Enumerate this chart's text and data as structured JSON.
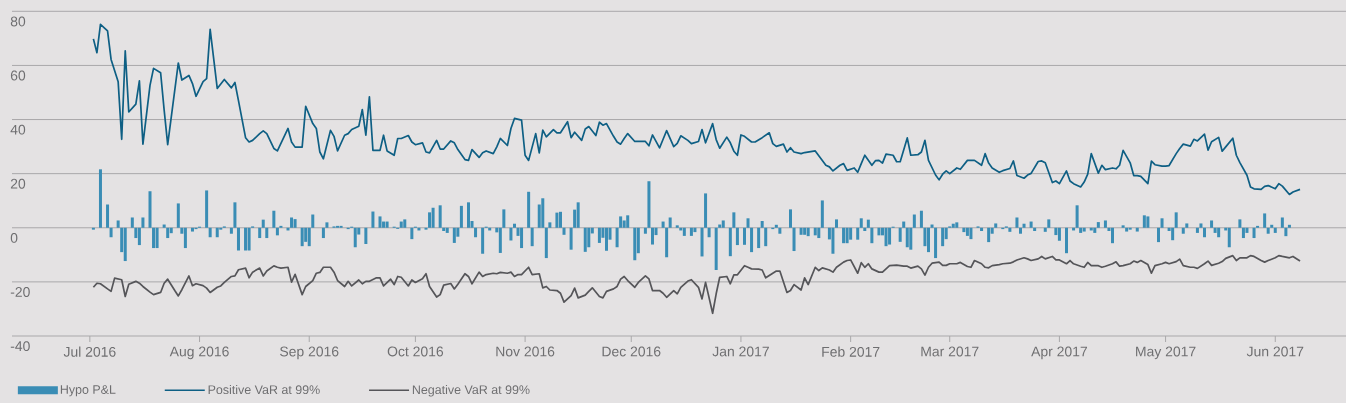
{
  "chart_data": {
    "type": "bar",
    "xlim": [
      "2016-06-09",
      "2017-06-21"
    ],
    "xticks": [
      {
        "value": "2016-07-01",
        "label": "Jul 2016"
      },
      {
        "value": "2016-08-01",
        "label": "Aug 2016"
      },
      {
        "value": "2016-09-01",
        "label": "Sep 2016"
      },
      {
        "value": "2016-10-01",
        "label": "Oct 2016"
      },
      {
        "value": "2016-11-01",
        "label": "Nov 2016"
      },
      {
        "value": "2016-12-01",
        "label": "Dec 2016"
      },
      {
        "value": "2017-01-01",
        "label": "Jan 2017"
      },
      {
        "value": "2017-02-01",
        "label": "Feb 2017"
      },
      {
        "value": "2017-03-01",
        "label": "Mar 2017"
      },
      {
        "value": "2017-04-01",
        "label": "Apr 2017"
      },
      {
        "value": "2017-05-01",
        "label": "May 2017"
      },
      {
        "value": "2017-06-01",
        "label": "Jun 2017"
      }
    ],
    "ylim": [
      -40,
      80
    ],
    "yticks": [
      -40,
      -20,
      0,
      20,
      40,
      60,
      80
    ],
    "grid": "y",
    "legend": "bottom",
    "series": [
      {
        "name": "Hypo P&L",
        "color": "#3a8db5",
        "x": [
          "2016-07-02",
          "2016-07-04",
          "2016-07-06",
          "2016-07-07",
          "2016-07-09",
          "2016-07-10",
          "2016-07-11",
          "2016-07-13",
          "2016-07-14",
          "2016-07-15",
          "2016-07-16",
          "2016-07-18",
          "2016-07-19",
          "2016-07-20",
          "2016-07-22",
          "2016-07-23",
          "2016-07-24",
          "2016-07-26",
          "2016-07-27",
          "2016-07-28",
          "2016-07-30",
          "2016-07-31",
          "2016-08-01",
          "2016-08-03",
          "2016-08-04",
          "2016-08-06",
          "2016-08-07",
          "2016-08-08",
          "2016-08-10",
          "2016-08-11",
          "2016-08-12",
          "2016-08-14",
          "2016-08-15",
          "2016-08-16",
          "2016-08-18",
          "2016-08-19",
          "2016-08-20",
          "2016-08-22",
          "2016-08-23",
          "2016-08-24",
          "2016-08-26",
          "2016-08-27",
          "2016-08-28",
          "2016-08-30",
          "2016-08-31",
          "2016-09-01",
          "2016-09-02",
          "2016-09-05",
          "2016-09-06",
          "2016-09-08",
          "2016-09-09",
          "2016-09-10",
          "2016-09-12",
          "2016-09-13",
          "2016-09-14",
          "2016-09-15",
          "2016-09-17",
          "2016-09-19",
          "2016-09-21",
          "2016-09-22",
          "2016-09-23",
          "2016-09-25",
          "2016-09-26",
          "2016-09-27",
          "2016-09-28",
          "2016-09-30",
          "2016-10-01",
          "2016-10-02",
          "2016-10-04",
          "2016-10-05",
          "2016-10-06",
          "2016-10-08",
          "2016-10-09",
          "2016-10-10",
          "2016-10-12",
          "2016-10-13",
          "2016-10-14",
          "2016-10-16",
          "2016-10-17",
          "2016-10-18",
          "2016-10-20",
          "2016-10-21",
          "2016-10-22",
          "2016-10-24",
          "2016-10-25",
          "2016-10-26",
          "2016-10-28",
          "2016-10-29",
          "2016-10-30",
          "2016-10-31",
          "2016-11-02",
          "2016-11-03",
          "2016-11-05",
          "2016-11-06",
          "2016-11-07",
          "2016-11-08",
          "2016-11-10",
          "2016-11-11",
          "2016-11-12",
          "2016-11-14",
          "2016-11-15",
          "2016-11-16",
          "2016-11-18",
          "2016-11-19",
          "2016-11-20",
          "2016-11-22",
          "2016-11-23",
          "2016-11-24",
          "2016-11-25",
          "2016-11-27",
          "2016-11-28",
          "2016-11-29",
          "2016-11-30",
          "2016-12-02",
          "2016-12-03",
          "2016-12-05",
          "2016-12-06",
          "2016-12-07",
          "2016-12-08",
          "2016-12-10",
          "2016-12-11",
          "2016-12-12",
          "2016-12-14",
          "2016-12-15",
          "2016-12-16",
          "2016-12-18",
          "2016-12-19",
          "2016-12-21",
          "2016-12-22",
          "2016-12-23",
          "2016-12-25",
          "2016-12-26",
          "2016-12-27",
          "2016-12-29",
          "2016-12-30",
          "2016-12-31",
          "2017-01-02",
          "2017-01-03",
          "2017-01-04",
          "2017-01-06",
          "2017-01-07",
          "2017-01-08",
          "2017-01-10",
          "2017-01-11",
          "2017-01-12",
          "2017-01-15",
          "2017-01-16",
          "2017-01-18",
          "2017-01-19",
          "2017-01-20",
          "2017-01-22",
          "2017-01-23",
          "2017-01-24",
          "2017-01-26",
          "2017-01-27",
          "2017-01-28",
          "2017-01-30",
          "2017-01-31",
          "2017-02-01",
          "2017-02-03",
          "2017-02-04",
          "2017-02-05",
          "2017-02-06",
          "2017-02-07",
          "2017-02-09",
          "2017-02-10",
          "2017-02-11",
          "2017-02-12",
          "2017-02-13",
          "2017-02-15",
          "2017-02-16",
          "2017-02-17",
          "2017-02-18",
          "2017-02-19",
          "2017-02-21",
          "2017-02-22",
          "2017-02-23",
          "2017-02-24",
          "2017-02-25",
          "2017-02-27",
          "2017-02-28",
          "2017-03-01",
          "2017-03-02",
          "2017-03-03",
          "2017-03-05",
          "2017-03-06",
          "2017-03-07",
          "2017-03-09",
          "2017-03-10",
          "2017-03-12",
          "2017-03-13",
          "2017-03-14",
          "2017-03-16",
          "2017-03-17",
          "2017-03-18",
          "2017-03-20",
          "2017-03-21",
          "2017-03-22",
          "2017-03-24",
          "2017-03-25",
          "2017-03-28",
          "2017-03-29",
          "2017-03-31",
          "2017-04-01",
          "2017-04-03",
          "2017-04-05",
          "2017-04-06",
          "2017-04-07",
          "2017-04-08",
          "2017-04-10",
          "2017-04-11",
          "2017-04-12",
          "2017-04-14",
          "2017-04-15",
          "2017-04-16",
          "2017-04-19",
          "2017-04-20",
          "2017-04-21",
          "2017-04-23",
          "2017-04-24",
          "2017-04-25",
          "2017-04-26",
          "2017-04-29",
          "2017-04-30",
          "2017-05-02",
          "2017-05-03",
          "2017-05-04",
          "2017-05-06",
          "2017-05-07",
          "2017-05-10",
          "2017-05-11",
          "2017-05-12",
          "2017-05-14",
          "2017-05-15",
          "2017-05-16",
          "2017-05-18",
          "2017-05-19",
          "2017-05-22",
          "2017-05-23",
          "2017-05-24",
          "2017-05-26",
          "2017-05-27",
          "2017-05-29",
          "2017-05-30",
          "2017-05-31",
          "2017-06-01",
          "2017-06-03",
          "2017-06-04",
          "2017-06-05"
        ],
        "values": [
          -0.7,
          21.6,
          8.6,
          -3.5,
          2.7,
          -9,
          -12.3,
          3.8,
          -3.8,
          -6.4,
          3.8,
          13.5,
          -7.5,
          -7.5,
          1.2,
          -3.8,
          -2,
          9,
          -2.2,
          -7.5,
          -1.4,
          -0.5,
          0.4,
          13.8,
          -3.5,
          -3.5,
          -0.7,
          0.5,
          -2.2,
          9.4,
          -8.4,
          -8.4,
          -8.4,
          0.5,
          -3.8,
          3,
          -3.8,
          6.3,
          -2.8,
          0.7,
          -1,
          3.8,
          3.2,
          -6.8,
          -5.2,
          -6.8,
          4.9,
          -3.8,
          2,
          0.5,
          0.7,
          0.7,
          -0.5,
          0.4,
          -7.2,
          -2.5,
          -6,
          6,
          4.2,
          2.3,
          2.3,
          0.4,
          -0.4,
          2.3,
          3.1,
          -4.2,
          0.4,
          -1,
          -0.7,
          5.7,
          7.4,
          8.3,
          -1.2,
          -1.9,
          -5.6,
          -3.3,
          8.1,
          9.4,
          2.5,
          -3.5,
          -9.6,
          0.4,
          -1,
          -1.7,
          -9.3,
          6.8,
          -4.7,
          1.5,
          -3,
          -7.5,
          13.3,
          -6.8,
          8.6,
          10.9,
          -11.2,
          2,
          5.6,
          5.9,
          -2.6,
          -8.1,
          6.7,
          9.4,
          -8.9,
          -7.2,
          -2.1,
          -5.6,
          -3.7,
          -8.5,
          -4.4,
          -7.2,
          4.2,
          2.7,
          4.6,
          -12,
          -9.4,
          -2.2,
          17.2,
          -6.2,
          -2.7,
          2.3,
          -10.9,
          3.8,
          0.9,
          -1,
          -3,
          -3,
          -1.6,
          -10.6,
          12.7,
          -3.5,
          -15.6,
          1.2,
          2.7,
          -10.5,
          5.7,
          -6.4,
          -6.3,
          3.5,
          -9,
          -7.5,
          2.5,
          -6.8,
          -0.5,
          1.1,
          -2.2,
          6.8,
          -8.6,
          -2.6,
          -2.6,
          -3.1,
          -2.8,
          -3.8,
          10.1,
          -4.3,
          -9.6,
          3.1,
          -5.7,
          -5.7,
          -4.4,
          -4.4,
          3.5,
          -1.2,
          3,
          -5.7,
          -2.8,
          -2.8,
          -6.8,
          -6.2,
          0.4,
          -5.2,
          2.3,
          -7.2,
          -8.1,
          4.9,
          6.3,
          -6.8,
          -9,
          1.2,
          -11.2,
          -6.8,
          -4.2,
          0.5,
          1.5,
          2,
          -1.6,
          -3,
          -4.2,
          0.5,
          -1.2,
          -5.3,
          -2.2,
          1.6,
          -0.5,
          0.5,
          -1.5,
          3.8,
          -2.2,
          1.5,
          2.3,
          -1.2,
          -1.5,
          3.1,
          -2.7,
          -4.8,
          -9.4,
          -1,
          8.3,
          -1.9,
          -1.4,
          -1,
          -1.9,
          2.1,
          2.7,
          -1.2,
          -5.7,
          0.9,
          -1.4,
          -0.7,
          -1.4,
          null,
          4.6,
          4.2,
          -5.3,
          3.5,
          -1.2,
          -4.6,
          5.7,
          -2.2,
          1.6,
          -1.9,
          1.6,
          -3.5,
          2.7,
          -1.9,
          -3.5,
          -1,
          -7.2,
          3.1,
          -3.8,
          -1.9,
          -3.8,
          0.7,
          5.3,
          -2.2,
          1.1,
          -1.9,
          3.8,
          -3.1,
          1.1
        ]
      },
      {
        "name": "Positive VaR at 99%",
        "type": "line",
        "color": "#0e5f84",
        "x": [
          "2016-07-02",
          "2016-07-03",
          "2016-07-04",
          "2016-07-06",
          "2016-07-07",
          "2016-07-09",
          "2016-07-10",
          "2016-07-11",
          "2016-07-12",
          "2016-07-14",
          "2016-07-15",
          "2016-07-16",
          "2016-07-18",
          "2016-07-19",
          "2016-07-21",
          "2016-07-22",
          "2016-07-23",
          "2016-07-26",
          "2016-07-27",
          "2016-07-29",
          "2016-07-30",
          "2016-07-31",
          "2016-08-02",
          "2016-08-03",
          "2016-08-04",
          "2016-08-06",
          "2016-08-08",
          "2016-08-10",
          "2016-08-11",
          "2016-08-12",
          "2016-08-14",
          "2016-08-15",
          "2016-08-16",
          "2016-08-18",
          "2016-08-19",
          "2016-08-20",
          "2016-08-22",
          "2016-08-23",
          "2016-08-26",
          "2016-08-27",
          "2016-08-28",
          "2016-08-30",
          "2016-08-31",
          "2016-09-02",
          "2016-09-03",
          "2016-09-04",
          "2016-09-05",
          "2016-09-07",
          "2016-09-08",
          "2016-09-09",
          "2016-09-11",
          "2016-09-12",
          "2016-09-13",
          "2016-09-15",
          "2016-09-16",
          "2016-09-17",
          "2016-09-18",
          "2016-09-19",
          "2016-09-21",
          "2016-09-22",
          "2016-09-23",
          "2016-09-25",
          "2016-09-26",
          "2016-09-27",
          "2016-09-29",
          "2016-09-30",
          "2016-10-01",
          "2016-10-03",
          "2016-10-04",
          "2016-10-05",
          "2016-10-07",
          "2016-10-08",
          "2016-10-09",
          "2016-10-11",
          "2016-10-12",
          "2016-10-13",
          "2016-10-15",
          "2016-10-16",
          "2016-10-17",
          "2016-10-19",
          "2016-10-20",
          "2016-10-21",
          "2016-10-23",
          "2016-10-24",
          "2016-10-25",
          "2016-10-27",
          "2016-10-28",
          "2016-10-29",
          "2016-10-31",
          "2016-11-01",
          "2016-11-02",
          "2016-11-04",
          "2016-11-05",
          "2016-11-06",
          "2016-11-07",
          "2016-11-09",
          "2016-11-10",
          "2016-11-11",
          "2016-11-13",
          "2016-11-14",
          "2016-11-15",
          "2016-11-17",
          "2016-11-18",
          "2016-11-19",
          "2016-11-21",
          "2016-11-22",
          "2016-11-23",
          "2016-11-24",
          "2016-11-26",
          "2016-11-27",
          "2016-11-28",
          "2016-11-29",
          "2016-11-30",
          "2016-12-02",
          "2016-12-03",
          "2016-12-05",
          "2016-12-06",
          "2016-12-07",
          "2016-12-09",
          "2016-12-10",
          "2016-12-11",
          "2016-12-13",
          "2016-12-14",
          "2016-12-15",
          "2016-12-17",
          "2016-12-18",
          "2016-12-20",
          "2016-12-21",
          "2016-12-22",
          "2016-12-24",
          "2016-12-25",
          "2016-12-26",
          "2016-12-28",
          "2016-12-29",
          "2016-12-30",
          "2016-12-31",
          "2017-01-01",
          "2017-01-02",
          "2017-01-04",
          "2017-01-05",
          "2017-01-07",
          "2017-01-09",
          "2017-01-10",
          "2017-01-11",
          "2017-01-13",
          "2017-01-14",
          "2017-01-15",
          "2017-01-16",
          "2017-01-18",
          "2017-01-19",
          "2017-01-22",
          "2017-01-25",
          "2017-01-26",
          "2017-01-27",
          "2017-01-29",
          "2017-01-30",
          "2017-01-31",
          "2017-02-02",
          "2017-02-03",
          "2017-02-04",
          "2017-02-05",
          "2017-02-07",
          "2017-02-08",
          "2017-02-09",
          "2017-02-10",
          "2017-02-11",
          "2017-02-13",
          "2017-02-14",
          "2017-02-15",
          "2017-02-17",
          "2017-02-18",
          "2017-02-20",
          "2017-02-21",
          "2017-02-22",
          "2017-02-23",
          "2017-02-25",
          "2017-02-26",
          "2017-02-27",
          "2017-02-28",
          "2017-03-01",
          "2017-03-03",
          "2017-03-04",
          "2017-03-06",
          "2017-03-07",
          "2017-03-08",
          "2017-03-10",
          "2017-03-11",
          "2017-03-12",
          "2017-03-13",
          "2017-03-15",
          "2017-03-16",
          "2017-03-18",
          "2017-03-19",
          "2017-03-20",
          "2017-03-22",
          "2017-03-23",
          "2017-03-24",
          "2017-03-26",
          "2017-03-27",
          "2017-03-28",
          "2017-03-30",
          "2017-03-31",
          "2017-04-01",
          "2017-04-03",
          "2017-04-04",
          "2017-04-05",
          "2017-04-07",
          "2017-04-08",
          "2017-04-09",
          "2017-04-10",
          "2017-04-12",
          "2017-04-13",
          "2017-04-14",
          "2017-04-16",
          "2017-04-17",
          "2017-04-18",
          "2017-04-19",
          "2017-04-21",
          "2017-04-22",
          "2017-04-23",
          "2017-04-24",
          "2017-04-26",
          "2017-04-27",
          "2017-04-28",
          "2017-04-30",
          "2017-05-01",
          "2017-05-02",
          "2017-05-04",
          "2017-05-05",
          "2017-05-06",
          "2017-05-08",
          "2017-05-09",
          "2017-05-10",
          "2017-05-12",
          "2017-05-13",
          "2017-05-14",
          "2017-05-16",
          "2017-05-17",
          "2017-05-18",
          "2017-05-20",
          "2017-05-21",
          "2017-05-22",
          "2017-05-24",
          "2017-05-25",
          "2017-05-26",
          "2017-05-28",
          "2017-05-29",
          "2017-05-30",
          "2017-06-01",
          "2017-06-02",
          "2017-06-03",
          "2017-06-05",
          "2017-06-06",
          "2017-06-08"
        ],
        "values": [
          69.8,
          64.7,
          75.2,
          72.8,
          62.2,
          54,
          32.7,
          65.4,
          42.8,
          45.7,
          54.3,
          30.9,
          52.6,
          58.9,
          57.3,
          43.5,
          30.7,
          60.9,
          54.6,
          56.3,
          53.3,
          48.6,
          54,
          55.1,
          73.3,
          51.5,
          54.8,
          51.7,
          53.7,
          47,
          33.3,
          31.7,
          32.3,
          34.8,
          35.8,
          34.8,
          29.3,
          28.4,
          36.7,
          31.7,
          29.8,
          29.8,
          44.9,
          38.5,
          36.7,
          28,
          25.5,
          36,
          33.8,
          28.4,
          34.2,
          34.8,
          36.3,
          37.5,
          43.7,
          34.2,
          48.4,
          28.6,
          28.6,
          34.2,
          28.4,
          26.8,
          33,
          33,
          34.1,
          31.7,
          30.7,
          31.4,
          28,
          27.7,
          32.3,
          29.1,
          29.1,
          32.1,
          31.4,
          28.9,
          25.2,
          24.9,
          28.9,
          26,
          27.7,
          28.4,
          27.4,
          29.9,
          33,
          30.4,
          36.7,
          40.4,
          39.8,
          26.8,
          24.9,
          34.8,
          27.7,
          36.1,
          33.6,
          36.3,
          35.1,
          35.1,
          39.2,
          33.3,
          35.3,
          32.3,
          36.5,
          37.4,
          34.1,
          39,
          37.9,
          38.5,
          33.8,
          31.7,
          30.9,
          33,
          34.8,
          31.9,
          31.9,
          31.9,
          30.3,
          34.3,
          29.5,
          32.7,
          35.9,
          30,
          31.2,
          34,
          32.3,
          31.1,
          31.9,
          36.3,
          31.4,
          38.5,
          32.6,
          29.4,
          33.5,
          31.4,
          28.3,
          26.8,
          34.3,
          33.8,
          31.7,
          31.7,
          33.3,
          35.1,
          31.1,
          30.1,
          30.9,
          28,
          29.6,
          28,
          27.4,
          27.8,
          28.4,
          23.1,
          22.5,
          21,
          23.1,
          23.7,
          21.2,
          22.1,
          20.5,
          23.7,
          26.8,
          23.1,
          24.8,
          24.9,
          23.9,
          27.2,
          26.8,
          24.4,
          24.4,
          33.2,
          26.8,
          27,
          28,
          32.3,
          24.9,
          19.5,
          17.7,
          19.8,
          21,
          20,
          22.1,
          21.6,
          24.9,
          24.9,
          24.9,
          23.1,
          27.4,
          23.9,
          22.1,
          20.5,
          21.1,
          21.9,
          24.7,
          19.3,
          18.3,
          19.5,
          20.1,
          24.5,
          24.7,
          24,
          16.7,
          17.3,
          16.3,
          21,
          17.3,
          16.3,
          15.1,
          16.9,
          19.8,
          27.4,
          20.2,
          23.1,
          21.5,
          22.1,
          21.8,
          23.1,
          28.6,
          24,
          19.3,
          19.3,
          19,
          16.3,
          24.6,
          23.3,
          22.8,
          22.8,
          23,
          27.4,
          29.3,
          30.9,
          30.2,
          32.7,
          32.1,
          34.6,
          28.7,
          31.8,
          33.4,
          28.3,
          29.9,
          33.1,
          26.8,
          24.1,
          19.4,
          15.1,
          14.4,
          14.2,
          15.3,
          15.6,
          14.4,
          16.3,
          15.4,
          12.3,
          13.2,
          14.2
        ]
      },
      {
        "name": "Negative VaR at 99%",
        "type": "line",
        "color": "#555559",
        "x": [
          "2016-07-02",
          "2016-07-03",
          "2016-07-04",
          "2016-07-06",
          "2016-07-07",
          "2016-07-08",
          "2016-07-10",
          "2016-07-11",
          "2016-07-12",
          "2016-07-14",
          "2016-07-15",
          "2016-07-16",
          "2016-07-18",
          "2016-07-19",
          "2016-07-21",
          "2016-07-22",
          "2016-07-23",
          "2016-07-25",
          "2016-07-26",
          "2016-07-27",
          "2016-07-29",
          "2016-07-30",
          "2016-07-31",
          "2016-08-02",
          "2016-08-03",
          "2016-08-04",
          "2016-08-06",
          "2016-08-07",
          "2016-08-08",
          "2016-08-10",
          "2016-08-11",
          "2016-08-12",
          "2016-08-14",
          "2016-08-15",
          "2016-08-16",
          "2016-08-18",
          "2016-08-19",
          "2016-08-20",
          "2016-08-22",
          "2016-08-23",
          "2016-08-24",
          "2016-08-26",
          "2016-08-27",
          "2016-08-28",
          "2016-08-30",
          "2016-08-31",
          "2016-09-02",
          "2016-09-03",
          "2016-09-04",
          "2016-09-05",
          "2016-09-07",
          "2016-09-08",
          "2016-09-09",
          "2016-09-11",
          "2016-09-12",
          "2016-09-13",
          "2016-09-15",
          "2016-09-16",
          "2016-09-17",
          "2016-09-18",
          "2016-09-20",
          "2016-09-21",
          "2016-09-22",
          "2016-09-24",
          "2016-09-25",
          "2016-09-26",
          "2016-09-27",
          "2016-09-29",
          "2016-09-30",
          "2016-10-01",
          "2016-10-03",
          "2016-10-04",
          "2016-10-05",
          "2016-10-07",
          "2016-10-08",
          "2016-10-09",
          "2016-10-11",
          "2016-10-12",
          "2016-10-13",
          "2016-10-15",
          "2016-10-16",
          "2016-10-17",
          "2016-10-19",
          "2016-10-20",
          "2016-10-21",
          "2016-10-23",
          "2016-10-24",
          "2016-10-25",
          "2016-10-27",
          "2016-10-28",
          "2016-10-29",
          "2016-10-30",
          "2016-10-31",
          "2016-11-02",
          "2016-11-03",
          "2016-11-05",
          "2016-11-06",
          "2016-11-07",
          "2016-11-08",
          "2016-11-10",
          "2016-11-11",
          "2016-11-12",
          "2016-11-14",
          "2016-11-15",
          "2016-11-16",
          "2016-11-18",
          "2016-11-19",
          "2016-11-20",
          "2016-11-22",
          "2016-11-23",
          "2016-11-24",
          "2016-11-26",
          "2016-11-27",
          "2016-11-28",
          "2016-11-29",
          "2016-11-30",
          "2016-12-02",
          "2016-12-03",
          "2016-12-05",
          "2016-12-06",
          "2016-12-07",
          "2016-12-09",
          "2016-12-10",
          "2016-12-11",
          "2016-12-13",
          "2016-12-14",
          "2016-12-15",
          "2016-12-17",
          "2016-12-18",
          "2016-12-20",
          "2016-12-21",
          "2016-12-22",
          "2016-12-24",
          "2016-12-25",
          "2016-12-26",
          "2016-12-28",
          "2016-12-29",
          "2016-12-30",
          "2016-12-31",
          "2017-01-02",
          "2017-01-03",
          "2017-01-04",
          "2017-01-06",
          "2017-01-07",
          "2017-01-08",
          "2017-01-10",
          "2017-01-11",
          "2017-01-12",
          "2017-01-14",
          "2017-01-15",
          "2017-01-16",
          "2017-01-18",
          "2017-01-19",
          "2017-01-20",
          "2017-01-22",
          "2017-01-23",
          "2017-01-24",
          "2017-01-26",
          "2017-01-27",
          "2017-01-28",
          "2017-01-30",
          "2017-01-31",
          "2017-02-01",
          "2017-02-03",
          "2017-02-04",
          "2017-02-05",
          "2017-02-06",
          "2017-02-07",
          "2017-02-09",
          "2017-02-10",
          "2017-02-11",
          "2017-02-12",
          "2017-02-14",
          "2017-02-15",
          "2017-02-16",
          "2017-02-17",
          "2017-02-18",
          "2017-02-20",
          "2017-02-21",
          "2017-02-22",
          "2017-02-23",
          "2017-02-24",
          "2017-02-26",
          "2017-02-27",
          "2017-02-28",
          "2017-03-01",
          "2017-03-03",
          "2017-03-04",
          "2017-03-06",
          "2017-03-07",
          "2017-03-08",
          "2017-03-10",
          "2017-03-11",
          "2017-03-12",
          "2017-03-13",
          "2017-03-15",
          "2017-03-16",
          "2017-03-18",
          "2017-03-19",
          "2017-03-20",
          "2017-03-22",
          "2017-03-23",
          "2017-03-24",
          "2017-03-26",
          "2017-03-27",
          "2017-03-28",
          "2017-03-30",
          "2017-03-31",
          "2017-04-01",
          "2017-04-03",
          "2017-04-04",
          "2017-04-05",
          "2017-04-07",
          "2017-04-08",
          "2017-04-09",
          "2017-04-10",
          "2017-04-12",
          "2017-04-13",
          "2017-04-14",
          "2017-04-16",
          "2017-04-17",
          "2017-04-18",
          "2017-04-19",
          "2017-04-21",
          "2017-04-22",
          "2017-04-23",
          "2017-04-24",
          "2017-04-26",
          "2017-04-27",
          "2017-04-28",
          "2017-04-30",
          "2017-05-01",
          "2017-05-02",
          "2017-05-04",
          "2017-05-05",
          "2017-05-06",
          "2017-05-08",
          "2017-05-09",
          "2017-05-10",
          "2017-05-12",
          "2017-05-13",
          "2017-05-14",
          "2017-05-16",
          "2017-05-17",
          "2017-05-18",
          "2017-05-20",
          "2017-05-21",
          "2017-05-22",
          "2017-05-24",
          "2017-05-25",
          "2017-05-26",
          "2017-05-28",
          "2017-05-29",
          "2017-05-30",
          "2017-06-01",
          "2017-06-02",
          "2017-06-03",
          "2017-06-05",
          "2017-06-06",
          "2017-06-08"
        ],
        "values": [
          -22,
          -20.5,
          -20.7,
          -22.6,
          -23.5,
          -18.6,
          -19.2,
          -25.4,
          -20.9,
          -19.8,
          -20.5,
          -21.7,
          -23.8,
          -24.7,
          -23.9,
          -20.5,
          -19,
          -23.2,
          -25.2,
          -22.9,
          -17.8,
          -21.4,
          -20.7,
          -21.4,
          -22.3,
          -23.9,
          -22,
          -21.5,
          -20.2,
          -18,
          -17.8,
          -15.5,
          -14.9,
          -18.5,
          -16.4,
          -14.9,
          -17.8,
          -16,
          -14.1,
          -14.6,
          -14.9,
          -14.6,
          -20.1,
          -17.2,
          -24.7,
          -21.7,
          -19.5,
          -16.8,
          -16.5,
          -14.6,
          -14.6,
          -16.4,
          -19.5,
          -21.7,
          -19.8,
          -21.5,
          -19.3,
          -20.7,
          -19.8,
          -19.8,
          -18.5,
          -18.5,
          -21.5,
          -19,
          -21,
          -18,
          -18.3,
          -21.5,
          -19.3,
          -20.2,
          -18.8,
          -17,
          -21.7,
          -25.6,
          -24.7,
          -21.2,
          -20.6,
          -22.6,
          -20.9,
          -17,
          -18,
          -20.7,
          -16.4,
          -18,
          -17.3,
          -16.8,
          -17,
          -16.5,
          -16.8,
          -16.4,
          -18,
          -17.3,
          -17.3,
          -14.6,
          -17.3,
          -17,
          -22.2,
          -21.7,
          -23,
          -23.2,
          -24.2,
          -27.5,
          -25.1,
          -22.3,
          -25.9,
          -24.9,
          -23.5,
          -22.2,
          -25.4,
          -25.9,
          -23.5,
          -22.6,
          -21.7,
          -19,
          -18,
          -19.5,
          -22,
          -20.2,
          -17.8,
          -18.9,
          -23.2,
          -23.2,
          -24.2,
          -25.7,
          -23.2,
          -24.4,
          -22,
          -19.7,
          -19.2,
          -22,
          -26.3,
          -20.2,
          -31.6,
          -24.4,
          -18.3,
          -18,
          -20.7,
          -17.4,
          -17.4,
          -14,
          -14.6,
          -15.2,
          -15.3,
          -15.6,
          -18.5,
          -16.8,
          -16,
          -16,
          -23.9,
          -23.2,
          -21,
          -23,
          -18.5,
          -21,
          -14.6,
          -15.8,
          -14.8,
          -15.6,
          -16.4,
          -14.6,
          -12.7,
          -12.1,
          -11.9,
          -16.8,
          -12.9,
          -14.6,
          -13.3,
          -15.2,
          -16.4,
          -16.4,
          -15.2,
          -14,
          -13.8,
          -14,
          -14.2,
          -14.2,
          -14.9,
          -14.2,
          -15.2,
          -17.5,
          -14.6,
          -13.1,
          -12.7,
          -13.9,
          -13.9,
          -13.3,
          -13.3,
          -12.8,
          -14.3,
          -14.6,
          -12.1,
          -13.3,
          -14.6,
          -14.8,
          -14,
          -13.6,
          -13.3,
          -13.1,
          -12.6,
          -11.9,
          -11.1,
          -11.5,
          -12.1,
          -11.5,
          -10.6,
          -11.5,
          -10.6,
          -11.9,
          -11.9,
          -13.3,
          -12.1,
          -13.3,
          -14.2,
          -14.6,
          -12.8,
          -14,
          -14,
          -14.6,
          -14.2,
          -13.3,
          -12.6,
          -14.2,
          -14,
          -13.3,
          -12.3,
          -12.8,
          -12.1,
          -13.6,
          -16.8,
          -14,
          -13.3,
          -12.8,
          -13.3,
          -12.5,
          -11.6,
          -14,
          -14.6,
          -14.6,
          -15,
          -13.3,
          -12.3,
          -13.9,
          -13.1,
          -12.5,
          -11.3,
          -10.3,
          -12.1,
          -11.1,
          -11.1,
          -10.3,
          -10.6,
          -12.1,
          -12.7,
          -12.1,
          -11.1,
          -10.3,
          -10.6,
          -11.1,
          -10.6,
          -12.3
        ]
      }
    ]
  }
}
